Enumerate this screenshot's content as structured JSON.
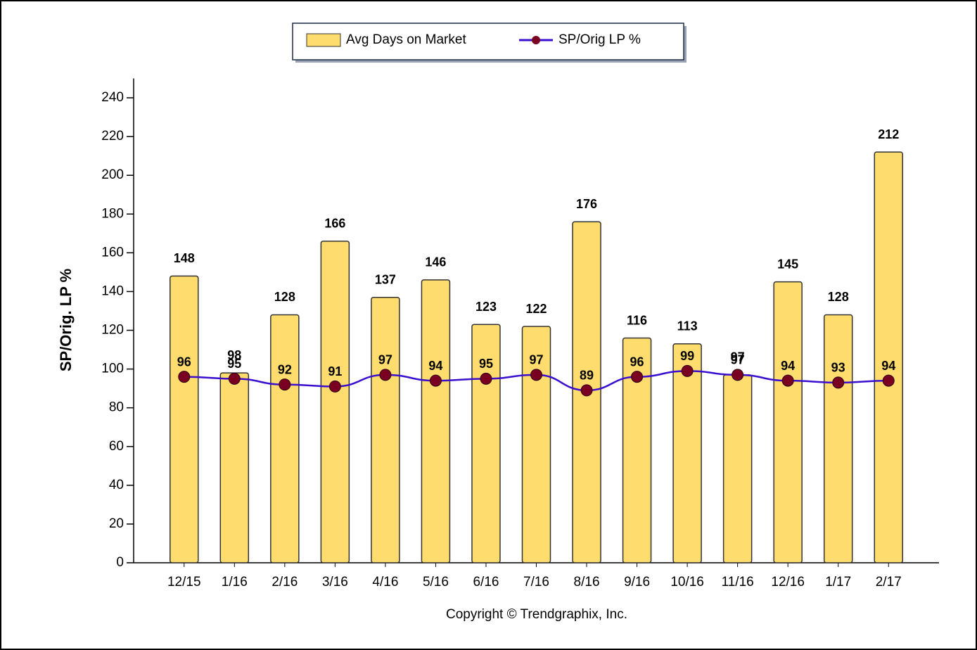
{
  "chart_data": {
    "type": "bar",
    "y_label": "SP/Orig. LP %",
    "copyright": "Copyright © Trendgraphix, Inc.",
    "categories": [
      "12/15",
      "1/16",
      "2/16",
      "3/16",
      "4/16",
      "5/16",
      "6/16",
      "7/16",
      "8/16",
      "9/16",
      "10/16",
      "11/16",
      "12/16",
      "1/17",
      "2/17"
    ],
    "series": [
      {
        "name": "Avg Days on Market",
        "type": "bar",
        "color": "#ffdc6e",
        "values": [
          148,
          98,
          128,
          166,
          137,
          146,
          123,
          122,
          176,
          116,
          113,
          97,
          145,
          128,
          212
        ]
      },
      {
        "name": "SP/Orig LP %",
        "type": "line",
        "color": "#3a0fd0",
        "marker_color": "#7a0022",
        "values": [
          96,
          95,
          92,
          91,
          97,
          94,
          95,
          97,
          89,
          96,
          99,
          97,
          94,
          93,
          94
        ]
      }
    ],
    "ylim": [
      0,
      250
    ],
    "yticks": [
      0,
      20,
      40,
      60,
      80,
      100,
      120,
      140,
      160,
      180,
      200,
      220,
      240
    ]
  }
}
